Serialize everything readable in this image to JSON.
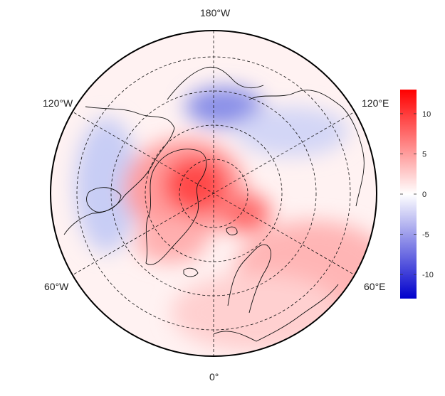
{
  "map": {
    "longitude_labels": {
      "top": "180°W",
      "upper_left": "120°W",
      "upper_right": "120°E",
      "lower_left": "60°W",
      "lower_right": "60°E",
      "bottom": "0°"
    },
    "graticule": "dashed",
    "projection": "north-polar stereographic"
  },
  "colorbar": {
    "min": -13,
    "max": 13,
    "ticks": [
      "10",
      "5",
      "0",
      "-5",
      "-10"
    ],
    "tick_values": [
      10,
      5,
      0,
      -5,
      -10
    ],
    "colors": {
      "high": "#ff0000",
      "mid": "#ffffff",
      "low": "#0000cc"
    }
  },
  "anomaly_regions": [
    {
      "name": "greenland-arctic-warm",
      "value": 10,
      "shape": "blob"
    },
    {
      "name": "barents-warm",
      "value": 6,
      "shape": "blob"
    },
    {
      "name": "siberia-warm",
      "value": 3,
      "shape": "band"
    },
    {
      "name": "canada-cool",
      "value": -3,
      "shape": "band"
    },
    {
      "name": "beaufort-cool",
      "value": -5,
      "shape": "blob"
    },
    {
      "name": "east-siberia-cool",
      "value": -2,
      "shape": "band"
    }
  ]
}
